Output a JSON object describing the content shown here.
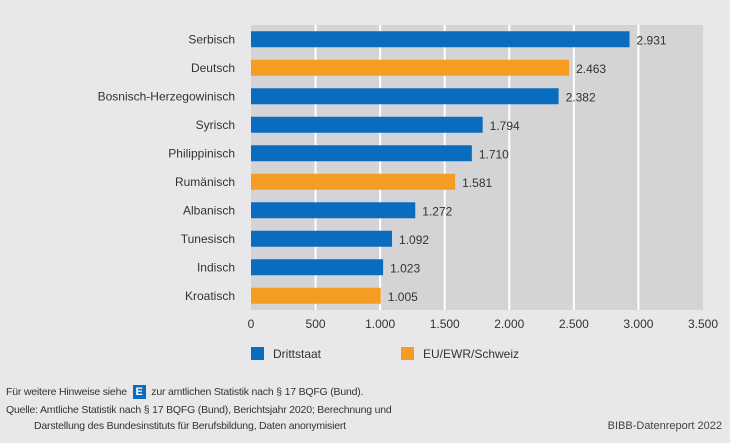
{
  "chart_data": {
    "type": "bar",
    "orientation": "horizontal",
    "title": "",
    "xlabel": "",
    "ylabel": "",
    "categories": [
      "Serbisch",
      "Deutsch",
      "Bosnisch-Herzegowinisch",
      "Syrisch",
      "Philippinisch",
      "Rumänisch",
      "Albanisch",
      "Tunesisch",
      "Indisch",
      "Kroatisch"
    ],
    "values": [
      2931,
      2463,
      2382,
      1794,
      1710,
      1581,
      1272,
      1092,
      1023,
      1005
    ],
    "value_labels": [
      "2.931",
      "2.463",
      "2.382",
      "1.794",
      "1.710",
      "1.581",
      "1.272",
      "1.092",
      "1.023",
      "1.005"
    ],
    "groups": [
      "Drittstaat",
      "EU/EWR/Schweiz",
      "Drittstaat",
      "Drittstaat",
      "Drittstaat",
      "EU/EWR/Schweiz",
      "Drittstaat",
      "Drittstaat",
      "Drittstaat",
      "EU/EWR/Schweiz"
    ],
    "xlim": [
      0,
      3500
    ],
    "xticks": [
      0,
      500,
      1000,
      1500,
      2000,
      2500,
      3000,
      3500
    ],
    "xtick_labels": [
      "0",
      "500",
      "1.000",
      "1.500",
      "2.000",
      "2.500",
      "3.000",
      "3.500"
    ],
    "grid": true,
    "legend_position": "bottom",
    "legend": [
      {
        "name": "Drittstaat",
        "color": "#0a6cbf"
      },
      {
        "name": "EU/EWR/Schweiz",
        "color": "#f59c22"
      }
    ]
  },
  "colors": {
    "Drittstaat": "#0a6cbf",
    "EU/EWR/Schweiz": "#f59c22",
    "plot_bg": "#d4d4d6",
    "grid": "#ffffff"
  },
  "footer": {
    "note_before": "Für weitere Hinweise siehe",
    "note_badge": "E",
    "note_after": "zur amtlichen Statistik nach § 17 BQFG (Bund).",
    "source_line1": "Quelle: Amtliche Statistik nach § 17 BQFG (Bund), Berichtsjahr 2020; Berechnung und",
    "source_line2": "Darstellung des Bundesinstituts für Berufsbildung, Daten anonymisiert",
    "brand": "BIBB-Datenreport 2022"
  }
}
